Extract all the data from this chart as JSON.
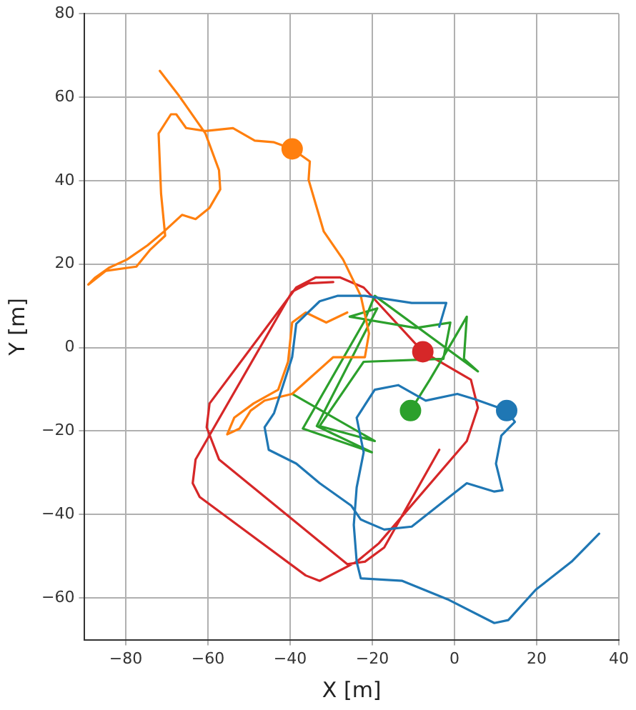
{
  "chart_data": {
    "type": "line",
    "xlabel": "X [m]",
    "ylabel": "Y [m]",
    "xlim": [
      -90,
      40
    ],
    "xticks": [
      -80,
      -60,
      -40,
      -20,
      0,
      20,
      40
    ],
    "ylim": [
      -70,
      80
    ],
    "yticks": [
      -60,
      -40,
      -20,
      0,
      20,
      40,
      60,
      80
    ],
    "grid": true,
    "legend": false,
    "marker": "none",
    "line_style": "solid",
    "series": [
      {
        "type": "line",
        "color": "#1f77b4",
        "x": [
          -3.7,
          -2.0,
          -10.4,
          -21.8,
          -28.5,
          -32.8,
          -38.5,
          -39.5,
          -43.9,
          -46.2,
          -45.2,
          -38.5,
          -32.8,
          -25.1,
          -22.8,
          -17.1,
          -10.4,
          -2.7,
          3.0,
          9.7,
          11.7,
          10.1,
          11.4,
          14.7,
          12.7,
          5.0,
          0.7,
          -7.0,
          -13.7,
          -19.4,
          -23.8,
          -22.1,
          -23.8,
          -24.5,
          -23.8,
          -22.8,
          -12.7,
          -1.7,
          9.7,
          13.1,
          19.8,
          28.5,
          35.2
        ],
        "values": [
          5.0,
          10.7,
          10.7,
          12.4,
          12.4,
          11.1,
          5.7,
          -2.3,
          -15.7,
          -19.1,
          -24.5,
          -27.8,
          -32.5,
          -37.9,
          -41.2,
          -43.6,
          -42.9,
          -36.9,
          -32.5,
          -34.5,
          -34.2,
          -27.8,
          -21.1,
          -17.8,
          -15.1,
          -12.4,
          -11.1,
          -12.7,
          -9.0,
          -10.1,
          -16.8,
          -25.1,
          -33.5,
          -42.5,
          -51.3,
          -55.3,
          -55.9,
          -60.3,
          -66.0,
          -65.3,
          -58.0,
          -51.3,
          -44.6
        ]
      },
      {
        "type": "line",
        "color": "#ff7f0e",
        "x": [
          -71.7,
          -67.0,
          -60.6,
          -57.3,
          -57.0,
          -59.6,
          -63.0,
          -66.3,
          -70.7,
          -74.7,
          -79.7,
          -84.1,
          -87.4,
          -89.1,
          -84.8,
          -77.4,
          -74.0,
          -70.4,
          -71.4,
          -72.0,
          -69.0,
          -67.7,
          -65.3,
          -60.6,
          -53.9,
          -48.6,
          -43.9,
          -39.5,
          -35.2,
          -35.5,
          -31.8,
          -27.1,
          -22.8,
          -20.8,
          -21.8,
          -29.5,
          -34.5,
          -39.5,
          -46.2,
          -49.6,
          -52.3,
          -55.3,
          -53.6,
          -48.9,
          -42.9,
          -40.5,
          -39.5,
          -36.2,
          -31.2,
          -26.1
        ],
        "values": [
          66.3,
          60.3,
          51.3,
          42.5,
          37.9,
          33.5,
          30.8,
          31.8,
          27.8,
          24.5,
          21.1,
          19.1,
          16.8,
          15.1,
          18.4,
          19.4,
          23.5,
          26.8,
          36.9,
          51.3,
          55.9,
          55.9,
          52.6,
          51.9,
          52.6,
          49.6,
          49.2,
          47.6,
          44.6,
          40.2,
          27.8,
          21.1,
          12.4,
          3.4,
          -2.3,
          -2.3,
          -6.7,
          -11.1,
          -12.7,
          -15.1,
          -19.4,
          -20.8,
          -16.8,
          -13.4,
          -10.1,
          -3.4,
          6.0,
          8.4,
          6.0,
          8.4
        ]
      },
      {
        "type": "line",
        "color": "#2ca02c",
        "x": [
          -10.7,
          -6.0,
          0.0,
          3.0,
          2.3,
          5.7,
          -19.4,
          -22.1,
          -36.9,
          -20.1,
          -33.5,
          -18.8,
          -25.5,
          -9.4,
          -1.0,
          -2.7,
          -22.1,
          -32.8,
          -19.4,
          -39.5
        ],
        "values": [
          -15.1,
          -7.7,
          2.3,
          7.4,
          -2.7,
          -5.7,
          12.4,
          6.0,
          -19.4,
          -25.1,
          -18.8,
          9.4,
          7.4,
          4.7,
          6.0,
          -2.7,
          -3.4,
          -18.8,
          -22.4,
          -11.1
        ]
      },
      {
        "type": "line",
        "color": "#d62728",
        "x": [
          -3.7,
          -17.1,
          -21.8,
          -26.1,
          -57.3,
          -60.3,
          -59.6,
          -38.5,
          -33.8,
          -27.8,
          -22.1,
          -7.7,
          4.0,
          5.7,
          3.0,
          -18.4,
          -23.8,
          -32.8,
          -36.2,
          -62.0,
          -63.7,
          -63.0,
          -39.5,
          -35.5,
          -29.5
        ],
        "values": [
          -24.5,
          -47.9,
          -51.3,
          -51.9,
          -26.8,
          -19.1,
          -13.4,
          14.4,
          16.8,
          16.8,
          14.4,
          -1.0,
          -7.7,
          -14.4,
          -22.4,
          -46.9,
          -51.3,
          -55.9,
          -54.6,
          -35.8,
          -32.5,
          -26.8,
          13.4,
          15.4,
          15.7
        ]
      },
      {
        "type": "scatter",
        "marker": "circle",
        "color": "#1f77b4",
        "x": [
          12.7
        ],
        "values": [
          -15.1
        ]
      },
      {
        "type": "scatter",
        "marker": "circle",
        "color": "#ff7f0e",
        "x": [
          -39.5
        ],
        "values": [
          47.6
        ]
      },
      {
        "type": "scatter",
        "marker": "circle",
        "color": "#2ca02c",
        "x": [
          -10.7
        ],
        "values": [
          -15.1
        ]
      },
      {
        "type": "scatter",
        "marker": "circle",
        "color": "#d62728",
        "x": [
          -7.7
        ],
        "values": [
          -1.0
        ]
      }
    ]
  }
}
